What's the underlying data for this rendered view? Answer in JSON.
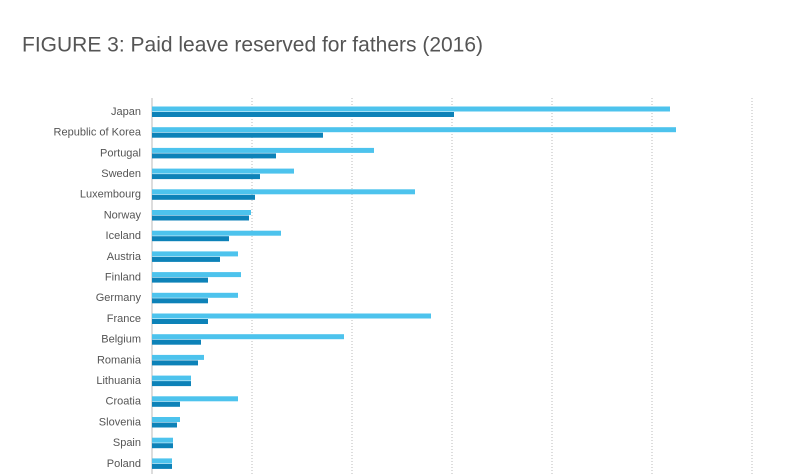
{
  "chart_data": {
    "type": "hbar",
    "title": "FIGURE 3: Paid leave reserved for fathers (2016)",
    "categories": [
      "Japan",
      "Republic of Korea",
      "Portugal",
      "Sweden",
      "Luxembourg",
      "Norway",
      "Iceland",
      "Austria",
      "Finland",
      "Germany",
      "France",
      "Belgium",
      "Romania",
      "Lithuania",
      "Croatia",
      "Slovenia",
      "Spain",
      "Poland"
    ],
    "series": [
      {
        "color": "#4dc3ed",
        "values": [
          51.8,
          52.4,
          22.2,
          14.2,
          26.3,
          9.9,
          12.9,
          8.6,
          8.9,
          8.6,
          27.9,
          19.2,
          5.2,
          3.9,
          8.6,
          2.8,
          2.1,
          2.0
        ]
      },
      {
        "color": "#0d82b8",
        "values": [
          30.2,
          17.1,
          12.4,
          10.8,
          10.3,
          9.7,
          7.7,
          6.8,
          5.6,
          5.6,
          5.6,
          4.9,
          4.6,
          3.9,
          2.8,
          2.5,
          2.1,
          2.0
        ]
      }
    ],
    "xlim": [
      0,
      60
    ],
    "xticks": [
      0,
      10,
      20,
      30,
      40,
      50,
      60
    ],
    "grid": true
  }
}
